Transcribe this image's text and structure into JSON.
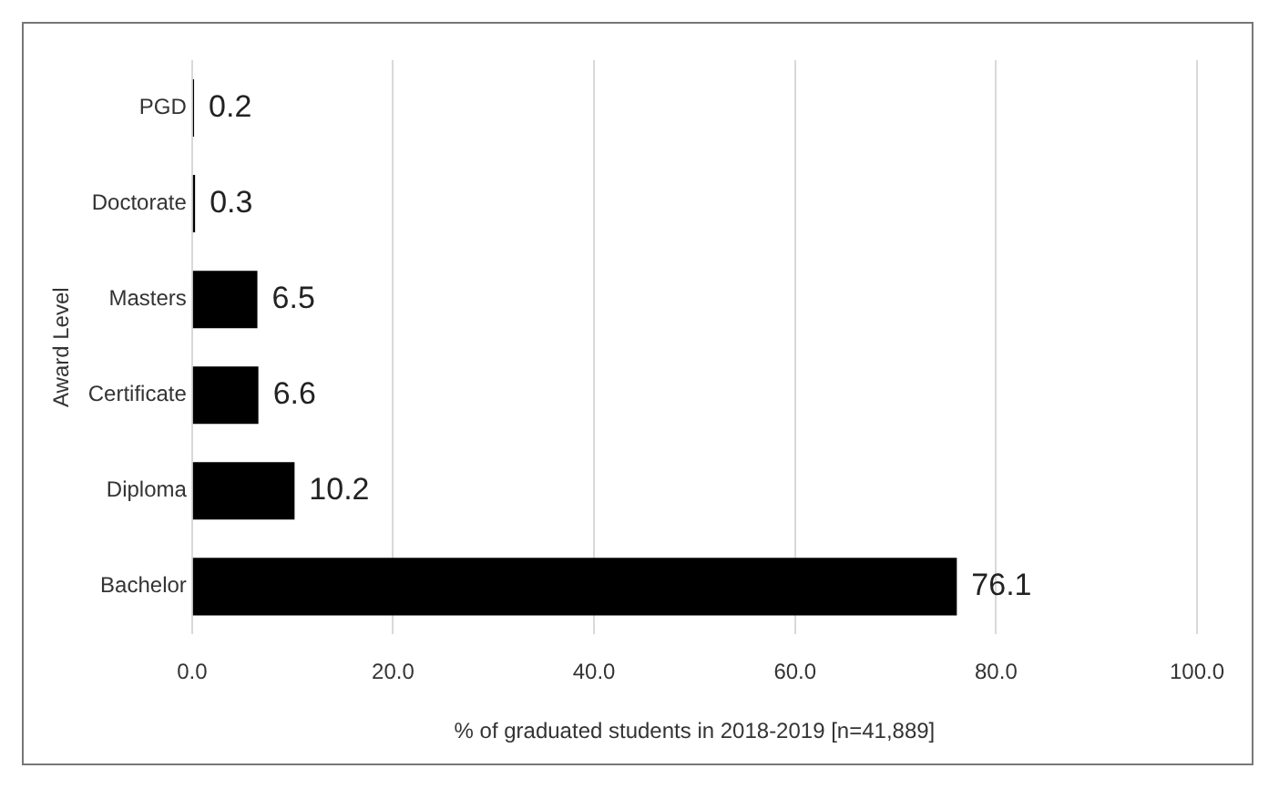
{
  "chart_data": {
    "type": "bar",
    "orientation": "horizontal",
    "categories": [
      "PGD",
      "Doctorate",
      "Masters",
      "Certificate",
      "Diploma",
      "Bachelor"
    ],
    "values": [
      0.2,
      0.3,
      6.5,
      6.6,
      10.2,
      76.1
    ],
    "color": "#000000",
    "xlabel": "% of graduated students in 2018-2019 [n=41,889]",
    "ylabel": "Award Level",
    "xlim": [
      0,
      100
    ],
    "xticks": [
      {
        "value": 0,
        "label": "0.0"
      },
      {
        "value": 20,
        "label": "20.0"
      },
      {
        "value": 40,
        "label": "40.0"
      },
      {
        "value": 60,
        "label": "60.0"
      },
      {
        "value": 80,
        "label": "80.0"
      },
      {
        "value": 100,
        "label": "100.0"
      }
    ],
    "grid": "x",
    "legend": false,
    "data_labels": true
  }
}
